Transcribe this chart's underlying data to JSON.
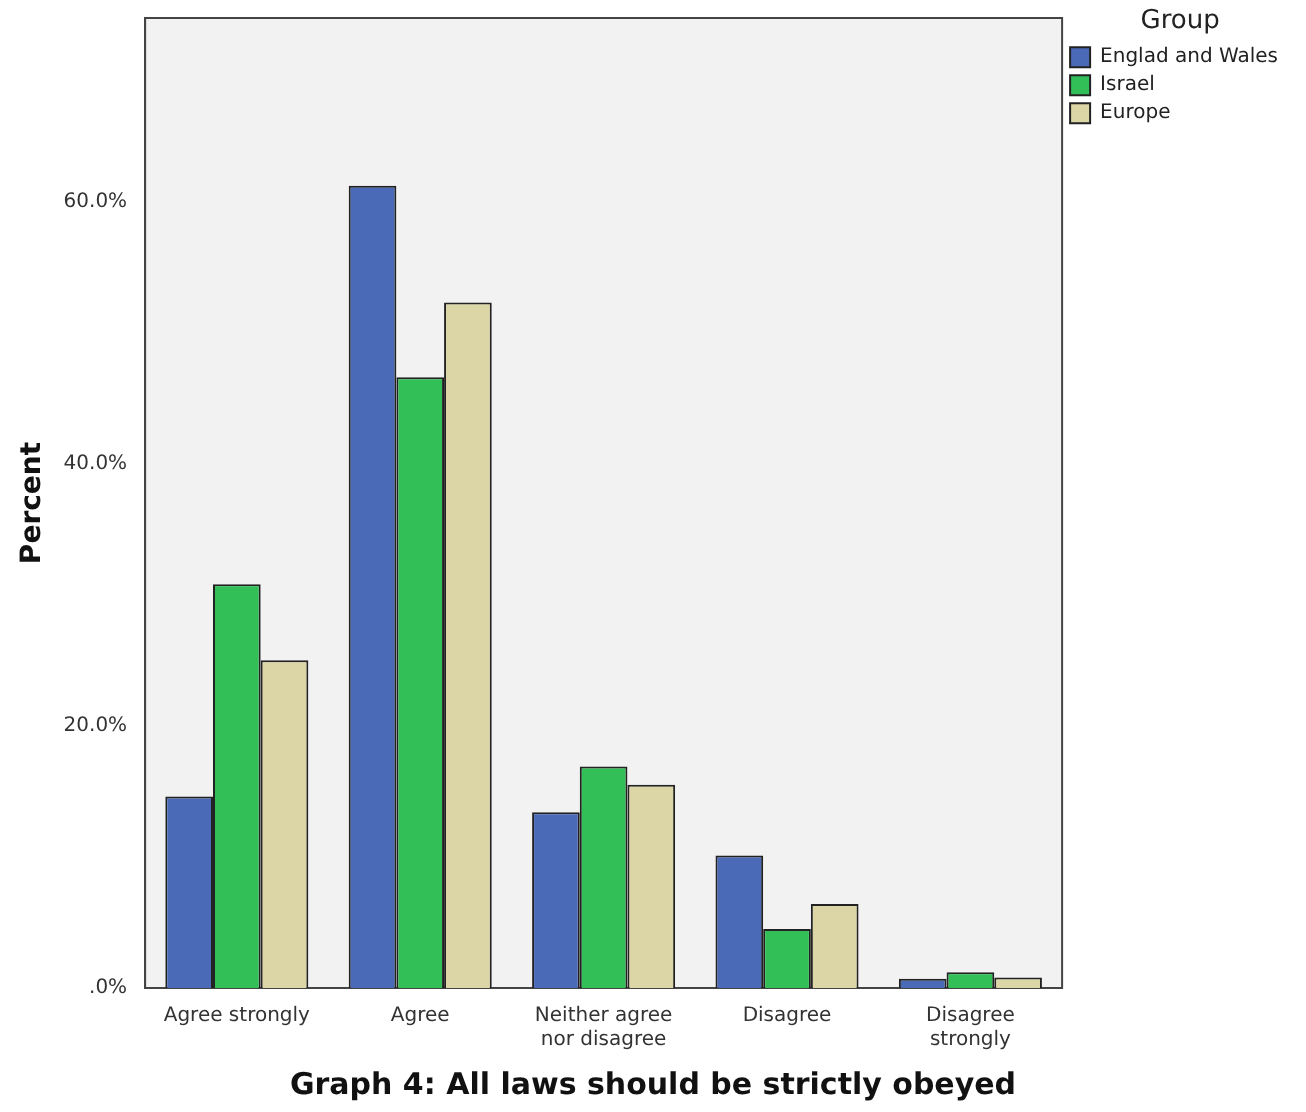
{
  "chart_data": {
    "type": "bar",
    "title": "Graph 4: All laws should be strictly obeyed",
    "ylabel": "Percent",
    "legend_title": "Group",
    "categories": [
      "Agree strongly",
      "Agree",
      "Neither agree nor disagree",
      "Disagree",
      "Disagree strongly"
    ],
    "series": [
      {
        "name": "Englad and Wales",
        "color": "#4a6ab8",
        "values": [
          14.6,
          61.2,
          13.4,
          10.1,
          0.7
        ]
      },
      {
        "name": "Israel",
        "color": "#33bf57",
        "values": [
          30.8,
          46.6,
          16.9,
          4.5,
          1.2
        ]
      },
      {
        "name": "Europe",
        "color": "#dcd5a5",
        "values": [
          25.0,
          52.3,
          15.5,
          6.4,
          0.8
        ]
      }
    ],
    "ylim": [
      0,
      74
    ],
    "yticks": [
      {
        "value": 0,
        "label": ".0%"
      },
      {
        "value": 20,
        "label": "20.0%"
      },
      {
        "value": 40,
        "label": "40.0%"
      },
      {
        "value": 60,
        "label": "60.0%"
      }
    ],
    "grid": false,
    "legend": "right top"
  }
}
